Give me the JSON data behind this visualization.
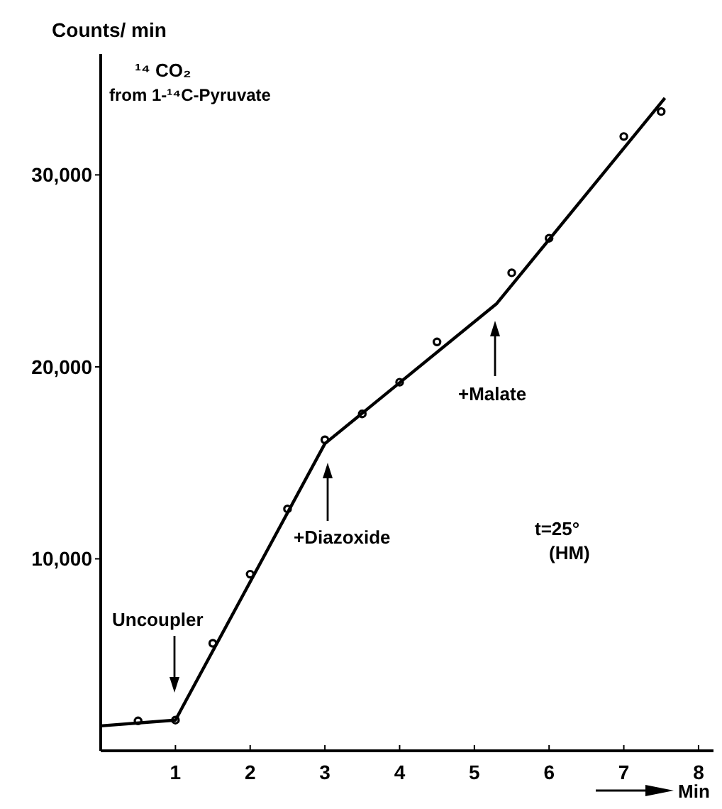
{
  "chart_data": {
    "type": "scatter",
    "title": "¹⁴ CO₂",
    "subtitle": "from 1-¹⁴C-Pyruvate",
    "ylabel": "Counts/ min",
    "xlabel": "Min",
    "x": [
      0.5,
      1,
      1.5,
      2,
      2.5,
      3,
      3.5,
      4,
      4.5,
      5.5,
      6,
      7,
      7.5
    ],
    "series": [
      {
        "marker": "circle",
        "color": "#000000",
        "values": [
          1560,
          1600,
          5600,
          9200,
          12600,
          16200,
          17550,
          19200,
          21300,
          24900,
          26700,
          32000,
          33300
        ]
      },
      {
        "type": "line",
        "color": "#000000",
        "x": [
          0,
          1,
          3,
          5.3,
          7.55
        ],
        "values": [
          1300,
          1600,
          16000,
          23300,
          34000
        ]
      }
    ],
    "xlim": [
      0,
      8.2
    ],
    "ylim": [
      0,
      36300
    ],
    "xticks": [
      1,
      2,
      3,
      4,
      5,
      6,
      7,
      8
    ],
    "yticks": [
      {
        "value": 10000,
        "label": "10,000"
      },
      {
        "value": 20000,
        "label": "20,000"
      },
      {
        "value": 30000,
        "label": "30,000"
      }
    ],
    "annotations": [
      "Uncoupler",
      "+Diazoxide",
      "+Malate",
      "t=25°",
      "(HM)"
    ]
  }
}
